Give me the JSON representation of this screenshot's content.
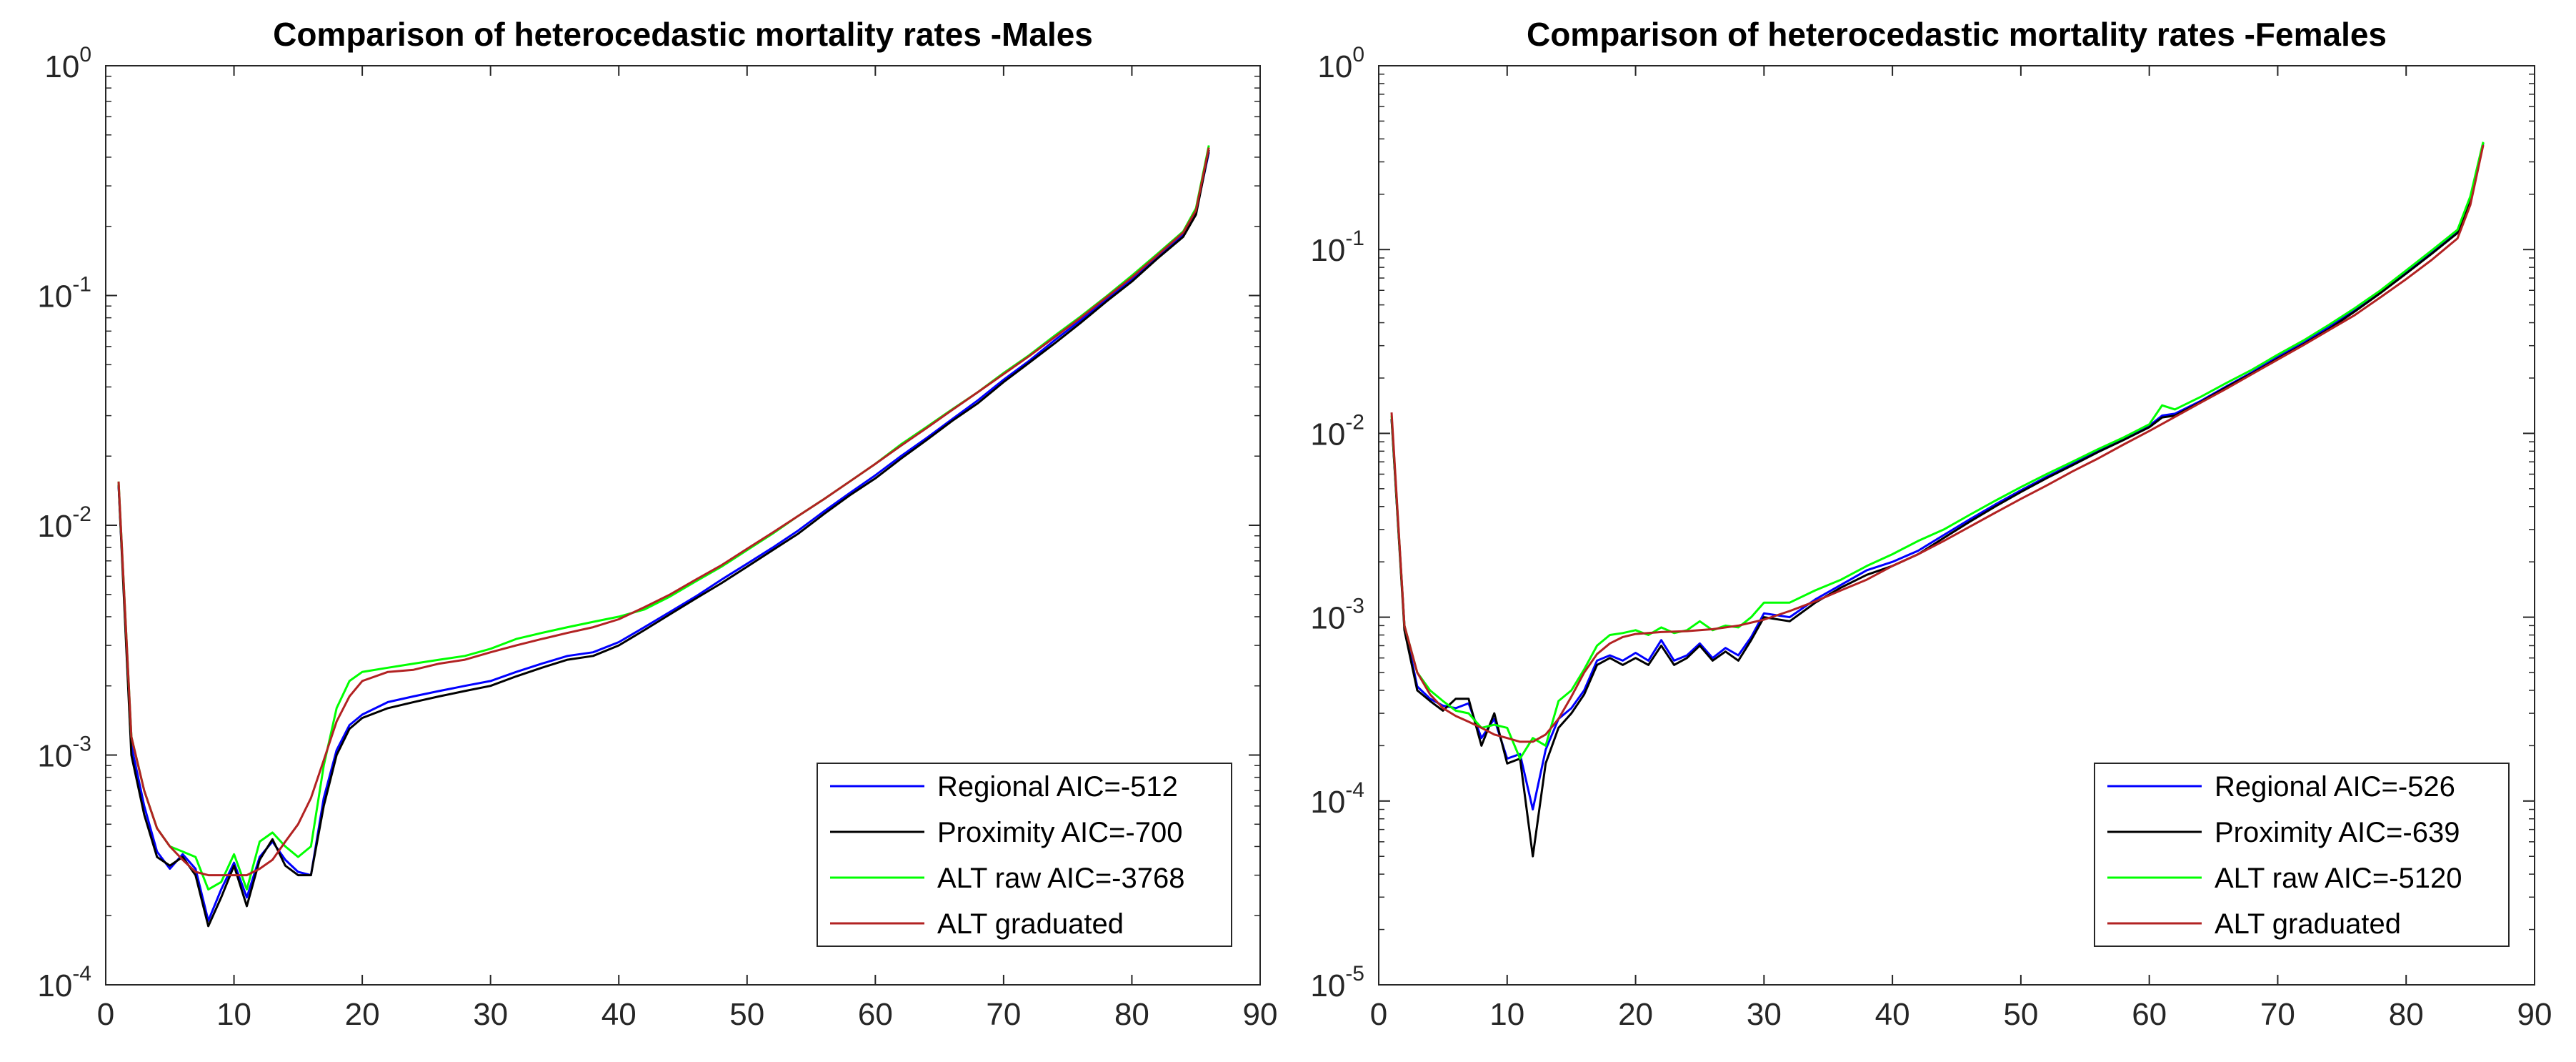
{
  "chart_data": [
    {
      "type": "line",
      "title": "Comparison of heterocedastic mortality rates -Males",
      "xlabel": "",
      "ylabel": "",
      "yscale": "log",
      "xlim": [
        0,
        90
      ],
      "ylim": [
        0.0001,
        1
      ],
      "xticks": [
        "0",
        "10",
        "20",
        "30",
        "40",
        "50",
        "60",
        "70",
        "80",
        "90"
      ],
      "yticks": [
        {
          "base": "10",
          "exp": "0"
        },
        {
          "base": "10",
          "exp": "-1"
        },
        {
          "base": "10",
          "exp": "-2"
        },
        {
          "base": "10",
          "exp": "-3"
        },
        {
          "base": "10",
          "exp": "-4"
        }
      ],
      "legend_position": "bottom-right",
      "series": [
        {
          "name": "Regional AIC=-512",
          "color": "#0000ff",
          "x": [
            1,
            2,
            3,
            4,
            5,
            6,
            7,
            8,
            9,
            10,
            11,
            12,
            13,
            14,
            15,
            16,
            17,
            18,
            19,
            20,
            22,
            24,
            26,
            28,
            30,
            32,
            34,
            36,
            38,
            40,
            42,
            44,
            46,
            48,
            50,
            52,
            54,
            56,
            58,
            60,
            62,
            64,
            66,
            68,
            70,
            72,
            74,
            76,
            78,
            80,
            82,
            84,
            85,
            86
          ],
          "y": [
            0.015,
            0.0011,
            0.0006,
            0.00038,
            0.00032,
            0.00037,
            0.00032,
            0.00019,
            0.00026,
            0.00034,
            0.00024,
            0.00036,
            0.00042,
            0.00035,
            0.00031,
            0.0003,
            0.00065,
            0.00105,
            0.00135,
            0.0015,
            0.0017,
            0.0018,
            0.0019,
            0.002,
            0.0021,
            0.0023,
            0.0025,
            0.0027,
            0.0028,
            0.0031,
            0.0036,
            0.0042,
            0.0049,
            0.0058,
            0.0068,
            0.008,
            0.0095,
            0.0115,
            0.0138,
            0.0165,
            0.02,
            0.024,
            0.029,
            0.035,
            0.043,
            0.052,
            0.064,
            0.078,
            0.096,
            0.118,
            0.148,
            0.185,
            0.23,
            0.42
          ]
        },
        {
          "name": "Proximity AIC=-700",
          "color": "#000000",
          "x": [
            1,
            2,
            3,
            4,
            5,
            6,
            7,
            8,
            9,
            10,
            11,
            12,
            13,
            14,
            15,
            16,
            17,
            18,
            19,
            20,
            22,
            24,
            26,
            28,
            30,
            32,
            34,
            36,
            38,
            40,
            42,
            44,
            46,
            48,
            50,
            52,
            54,
            56,
            58,
            60,
            62,
            64,
            66,
            68,
            70,
            72,
            74,
            76,
            78,
            80,
            82,
            84,
            85,
            86
          ],
          "y": [
            0.015,
            0.001,
            0.00055,
            0.00036,
            0.00033,
            0.00036,
            0.0003,
            0.00018,
            0.00024,
            0.00033,
            0.00022,
            0.00035,
            0.00043,
            0.00033,
            0.0003,
            0.0003,
            0.0006,
            0.001,
            0.0013,
            0.00145,
            0.0016,
            0.0017,
            0.0018,
            0.0019,
            0.002,
            0.0022,
            0.0024,
            0.0026,
            0.0027,
            0.003,
            0.0035,
            0.0041,
            0.0048,
            0.0056,
            0.0066,
            0.0078,
            0.0092,
            0.0112,
            0.0135,
            0.016,
            0.0195,
            0.0235,
            0.0285,
            0.034,
            0.042,
            0.051,
            0.062,
            0.076,
            0.094,
            0.115,
            0.145,
            0.18,
            0.225,
            0.43
          ]
        },
        {
          "name": "ALT raw AIC=-3768",
          "color": "#00ff00",
          "x": [
            1,
            2,
            3,
            4,
            5,
            6,
            7,
            8,
            9,
            10,
            11,
            12,
            13,
            14,
            15,
            16,
            17,
            18,
            19,
            20,
            22,
            24,
            26,
            28,
            30,
            32,
            34,
            36,
            38,
            40,
            42,
            44,
            46,
            48,
            50,
            52,
            54,
            56,
            58,
            60,
            62,
            64,
            66,
            68,
            70,
            72,
            74,
            76,
            78,
            80,
            82,
            84,
            85,
            86
          ],
          "y": [
            0.0155,
            0.0012,
            0.0007,
            0.00048,
            0.0004,
            0.00038,
            0.00036,
            0.00026,
            0.00028,
            0.00037,
            0.00026,
            0.00042,
            0.00046,
            0.0004,
            0.00036,
            0.0004,
            0.0009,
            0.0016,
            0.0021,
            0.0023,
            0.0024,
            0.0025,
            0.0026,
            0.0027,
            0.0029,
            0.0032,
            0.0034,
            0.0036,
            0.0038,
            0.004,
            0.0043,
            0.0049,
            0.0057,
            0.0066,
            0.0078,
            0.0092,
            0.011,
            0.013,
            0.0155,
            0.0185,
            0.0225,
            0.0268,
            0.032,
            0.038,
            0.046,
            0.055,
            0.067,
            0.081,
            0.099,
            0.122,
            0.152,
            0.19,
            0.24,
            0.45
          ]
        },
        {
          "name": "ALT graduated",
          "color": "#b22222",
          "x": [
            1,
            2,
            3,
            4,
            5,
            6,
            7,
            8,
            9,
            10,
            11,
            12,
            13,
            14,
            15,
            16,
            17,
            18,
            19,
            20,
            22,
            24,
            26,
            28,
            30,
            32,
            34,
            36,
            38,
            40,
            42,
            44,
            46,
            48,
            50,
            52,
            54,
            56,
            58,
            60,
            62,
            64,
            66,
            68,
            70,
            72,
            74,
            76,
            78,
            80,
            82,
            84,
            85,
            86
          ],
          "y": [
            0.0155,
            0.0012,
            0.0007,
            0.00048,
            0.0004,
            0.00035,
            0.00031,
            0.0003,
            0.0003,
            0.0003,
            0.0003,
            0.00032,
            0.00035,
            0.00042,
            0.0005,
            0.00065,
            0.00095,
            0.0014,
            0.0018,
            0.0021,
            0.0023,
            0.00235,
            0.0025,
            0.0026,
            0.0028,
            0.003,
            0.0032,
            0.0034,
            0.0036,
            0.0039,
            0.0044,
            0.005,
            0.0058,
            0.0067,
            0.0079,
            0.0093,
            0.011,
            0.013,
            0.0155,
            0.0185,
            0.0222,
            0.0265,
            0.0318,
            0.038,
            0.0455,
            0.0545,
            0.066,
            0.08,
            0.098,
            0.12,
            0.15,
            0.188,
            0.235,
            0.44
          ]
        }
      ]
    },
    {
      "type": "line",
      "title": "Comparison of heterocedastic mortality rates -Females",
      "xlabel": "",
      "ylabel": "",
      "yscale": "log",
      "xlim": [
        0,
        90
      ],
      "ylim": [
        1e-05,
        1
      ],
      "xticks": [
        "0",
        "10",
        "20",
        "30",
        "40",
        "50",
        "60",
        "70",
        "80",
        "90"
      ],
      "yticks": [
        {
          "base": "10",
          "exp": "0"
        },
        {
          "base": "10",
          "exp": "-1"
        },
        {
          "base": "10",
          "exp": "-2"
        },
        {
          "base": "10",
          "exp": "-3"
        },
        {
          "base": "10",
          "exp": "-4"
        },
        {
          "base": "10",
          "exp": "-5"
        }
      ],
      "legend_position": "bottom-right",
      "series": [
        {
          "name": "Regional AIC=-526",
          "color": "#0000ff",
          "x": [
            1,
            2,
            3,
            4,
            5,
            6,
            7,
            8,
            9,
            10,
            11,
            12,
            13,
            14,
            15,
            16,
            17,
            18,
            19,
            20,
            21,
            22,
            23,
            24,
            25,
            26,
            27,
            28,
            29,
            30,
            32,
            34,
            36,
            38,
            40,
            42,
            44,
            46,
            48,
            50,
            52,
            54,
            56,
            58,
            60,
            61,
            62,
            64,
            66,
            68,
            70,
            72,
            74,
            76,
            78,
            80,
            82,
            84,
            85,
            86
          ],
          "y": [
            0.012,
            0.0009,
            0.00042,
            0.00036,
            0.00033,
            0.00032,
            0.00034,
            0.00022,
            0.00028,
            0.00017,
            0.00018,
            9e-05,
            0.00019,
            0.00028,
            0.00032,
            0.0004,
            0.00058,
            0.00062,
            0.00058,
            0.00064,
            0.00058,
            0.00075,
            0.00058,
            0.00062,
            0.00072,
            0.0006,
            0.00068,
            0.00062,
            0.00078,
            0.00105,
            0.001,
            0.00125,
            0.0015,
            0.0018,
            0.002,
            0.0023,
            0.0028,
            0.0034,
            0.0041,
            0.0049,
            0.0058,
            0.0068,
            0.008,
            0.0093,
            0.011,
            0.0125,
            0.0128,
            0.015,
            0.018,
            0.0215,
            0.026,
            0.031,
            0.038,
            0.047,
            0.059,
            0.075,
            0.096,
            0.125,
            0.19,
            0.38
          ]
        },
        {
          "name": "Proximity AIC=-639",
          "color": "#000000",
          "x": [
            1,
            2,
            3,
            4,
            5,
            6,
            7,
            8,
            9,
            10,
            11,
            12,
            13,
            14,
            15,
            16,
            17,
            18,
            19,
            20,
            21,
            22,
            23,
            24,
            25,
            26,
            27,
            28,
            29,
            30,
            32,
            34,
            36,
            38,
            40,
            42,
            44,
            46,
            48,
            50,
            52,
            54,
            56,
            58,
            60,
            61,
            62,
            64,
            66,
            68,
            70,
            72,
            74,
            76,
            78,
            80,
            82,
            84,
            85,
            86
          ],
          "y": [
            0.012,
            0.00085,
            0.0004,
            0.00035,
            0.00031,
            0.00036,
            0.00036,
            0.0002,
            0.0003,
            0.00016,
            0.00017,
            5e-05,
            0.00016,
            0.00025,
            0.0003,
            0.00038,
            0.00055,
            0.0006,
            0.00055,
            0.0006,
            0.00055,
            0.0007,
            0.00055,
            0.0006,
            0.0007,
            0.00058,
            0.00065,
            0.00058,
            0.00075,
            0.001,
            0.00095,
            0.0012,
            0.00145,
            0.0017,
            0.0019,
            0.0022,
            0.0027,
            0.0033,
            0.004,
            0.0048,
            0.0057,
            0.0067,
            0.0079,
            0.0092,
            0.0108,
            0.0122,
            0.0125,
            0.0148,
            0.0178,
            0.0212,
            0.0255,
            0.0305,
            0.037,
            0.046,
            0.058,
            0.074,
            0.095,
            0.123,
            0.188,
            0.38
          ]
        },
        {
          "name": "ALT raw AIC=-5120",
          "color": "#00ff00",
          "x": [
            1,
            2,
            3,
            4,
            5,
            6,
            7,
            8,
            9,
            10,
            11,
            12,
            13,
            14,
            15,
            16,
            17,
            18,
            19,
            20,
            21,
            22,
            23,
            24,
            25,
            26,
            27,
            28,
            29,
            30,
            32,
            34,
            36,
            38,
            40,
            42,
            44,
            46,
            48,
            50,
            52,
            54,
            56,
            58,
            60,
            61,
            62,
            64,
            66,
            68,
            70,
            72,
            74,
            76,
            78,
            80,
            82,
            84,
            85,
            86
          ],
          "y": [
            0.0125,
            0.0009,
            0.0005,
            0.0004,
            0.00035,
            0.00031,
            0.0003,
            0.00025,
            0.00026,
            0.00025,
            0.00017,
            0.00022,
            0.0002,
            0.00035,
            0.0004,
            0.00052,
            0.0007,
            0.0008,
            0.00082,
            0.00085,
            0.0008,
            0.00088,
            0.00082,
            0.00085,
            0.00095,
            0.00085,
            0.0009,
            0.00088,
            0.001,
            0.0012,
            0.0012,
            0.0014,
            0.0016,
            0.0019,
            0.0022,
            0.0026,
            0.003,
            0.0036,
            0.0043,
            0.0051,
            0.006,
            0.007,
            0.0082,
            0.0095,
            0.0112,
            0.0142,
            0.0135,
            0.0158,
            0.0188,
            0.0222,
            0.0268,
            0.032,
            0.039,
            0.048,
            0.06,
            0.077,
            0.099,
            0.128,
            0.195,
            0.385
          ]
        },
        {
          "name": "ALT graduated",
          "color": "#b22222",
          "x": [
            1,
            2,
            3,
            4,
            5,
            6,
            7,
            8,
            9,
            10,
            11,
            12,
            13,
            14,
            15,
            16,
            17,
            18,
            19,
            20,
            22,
            24,
            26,
            28,
            30,
            32,
            34,
            36,
            38,
            40,
            42,
            44,
            46,
            48,
            50,
            52,
            54,
            56,
            58,
            60,
            62,
            64,
            66,
            68,
            70,
            72,
            74,
            76,
            78,
            80,
            82,
            84,
            85,
            86
          ],
          "y": [
            0.013,
            0.0009,
            0.0005,
            0.00038,
            0.00032,
            0.00029,
            0.00027,
            0.00025,
            0.00023,
            0.00022,
            0.00021,
            0.00021,
            0.00023,
            0.00028,
            0.00037,
            0.0005,
            0.00063,
            0.00072,
            0.00078,
            0.00081,
            0.00083,
            0.00084,
            0.00086,
            0.0009,
            0.00097,
            0.00108,
            0.00122,
            0.0014,
            0.0016,
            0.0019,
            0.0022,
            0.0026,
            0.0031,
            0.0037,
            0.0044,
            0.0052,
            0.0062,
            0.0073,
            0.0087,
            0.0103,
            0.0123,
            0.0147,
            0.0175,
            0.021,
            0.0252,
            0.0302,
            0.0365,
            0.044,
            0.055,
            0.069,
            0.088,
            0.115,
            0.175,
            0.37
          ]
        }
      ]
    }
  ]
}
